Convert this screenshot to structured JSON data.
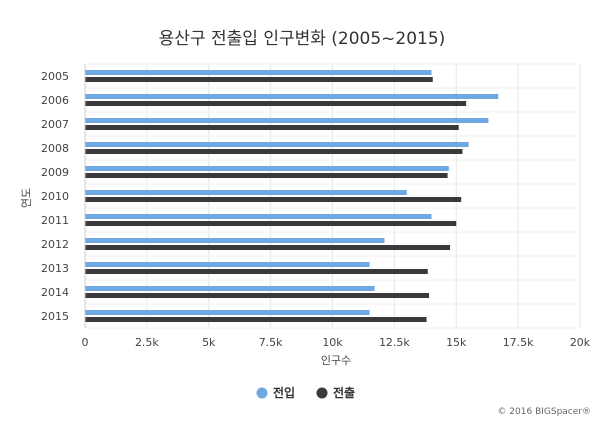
{
  "chart_data": {
    "type": "bar",
    "orientation": "horizontal",
    "title": "용산구 전출입 인구변화 (2005~2015)",
    "ylabel": "연도",
    "xlabel": "인구수",
    "categories": [
      "2005",
      "2006",
      "2007",
      "2008",
      "2009",
      "2010",
      "2011",
      "2012",
      "2013",
      "2014",
      "2015"
    ],
    "series": [
      {
        "name": "전입",
        "color": "#6fa8e0",
        "values": [
          14000,
          16700,
          16300,
          15500,
          14700,
          13000,
          14000,
          12100,
          11500,
          11700,
          11500
        ]
      },
      {
        "name": "전출",
        "color": "#3a3a3c",
        "values": [
          14050,
          15400,
          15100,
          15250,
          14650,
          15200,
          15000,
          14750,
          13850,
          13900,
          13800
        ]
      }
    ],
    "xlim": [
      0,
      20000
    ],
    "x_ticks": [
      0,
      2500,
      5000,
      7500,
      10000,
      12500,
      15000,
      17500,
      20000
    ],
    "x_tick_labels": [
      "0",
      "2.5k",
      "5k",
      "7.5k",
      "10k",
      "12.5k",
      "15k",
      "17.5k",
      "20k"
    ],
    "grid": true,
    "legend_position": "bottom-center"
  },
  "credit": "© 2016 BIGSpacer®"
}
